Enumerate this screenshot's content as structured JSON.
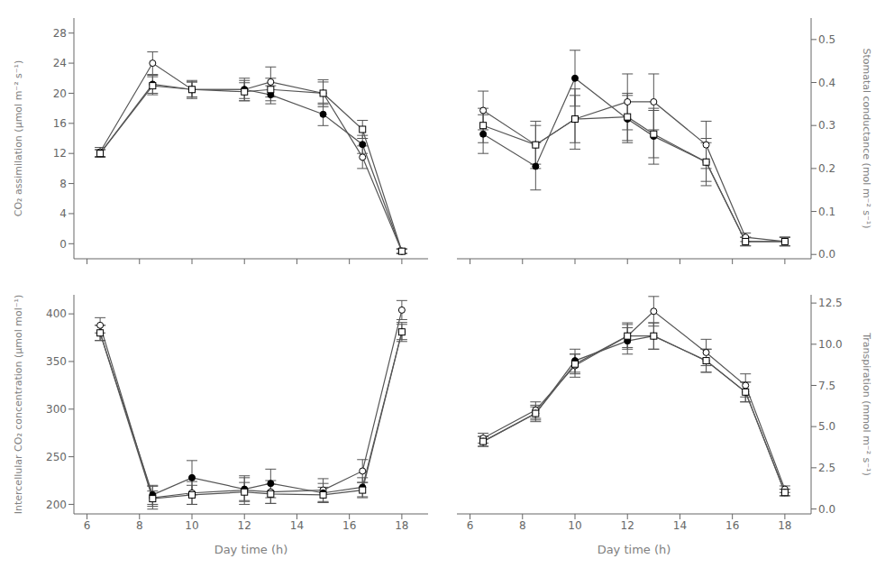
{
  "chart_data": [
    {
      "type": "line",
      "y_label": "CO₂ assimilation (μmol m⁻² s⁻¹)",
      "tick_labels": "y",
      "grid": false,
      "x": [
        6.5,
        8.5,
        10,
        12,
        13,
        15,
        16.5,
        18
      ],
      "xlim": [
        5.5,
        19.0
      ],
      "xticks": [
        6,
        8,
        10,
        12,
        14,
        16,
        18
      ],
      "ylim": [
        -2,
        30
      ],
      "yticks": [
        0,
        4,
        8,
        12,
        16,
        20,
        24,
        28
      ],
      "series": [
        {
          "marker": "circle_open",
          "color": "#555555",
          "values": [
            12.2,
            24.0,
            20.5,
            20.5,
            21.5,
            20.0,
            11.5,
            -1.0
          ],
          "errors": [
            0.6,
            1.5,
            1.2,
            1.5,
            2.0,
            1.8,
            1.5,
            0.3
          ]
        },
        {
          "marker": "circle",
          "color": "#555555",
          "values": [
            12.0,
            21.2,
            20.5,
            20.5,
            19.8,
            17.2,
            13.2,
            -1.0
          ],
          "errors": [
            0.5,
            1.2,
            1.0,
            1.2,
            1.2,
            1.5,
            1.2,
            0.3
          ]
        },
        {
          "marker": "square_open",
          "color": "#555555",
          "values": [
            12.0,
            21.0,
            20.5,
            20.2,
            20.5,
            20.0,
            15.2,
            -1.0
          ],
          "errors": [
            0.5,
            1.2,
            1.0,
            1.2,
            1.5,
            1.5,
            1.2,
            0.3
          ]
        }
      ]
    },
    {
      "type": "line",
      "y_label": "Stomatal conductance (mol m⁻² s⁻¹)",
      "tick_labels": "y",
      "grid": false,
      "x": [
        6.5,
        8.5,
        10,
        12,
        13,
        15,
        16.5,
        18
      ],
      "xlim": [
        5.5,
        19.0
      ],
      "xticks": [
        6,
        8,
        10,
        12,
        14,
        16,
        18
      ],
      "ylim": [
        -0.01,
        0.55
      ],
      "yticks": [
        {
          "value": 0.0,
          "label": "0.0"
        },
        0.1,
        0.2,
        0.3,
        0.4,
        0.5
      ],
      "series": [
        {
          "marker": "circle_open",
          "color": "#555555",
          "values": [
            0.335,
            0.255,
            0.315,
            0.355,
            0.355,
            0.255,
            0.04,
            0.03
          ],
          "errors": [
            0.045,
            0.055,
            0.07,
            0.065,
            0.065,
            0.055,
            0.01,
            0.01
          ]
        },
        {
          "marker": "circle",
          "color": "#555555",
          "values": [
            0.28,
            0.205,
            0.41,
            0.315,
            0.275,
            0.215,
            0.03,
            0.03
          ],
          "errors": [
            0.045,
            0.055,
            0.065,
            0.055,
            0.065,
            0.055,
            0.01,
            0.01
          ]
        },
        {
          "marker": "square_open",
          "color": "#555555",
          "values": [
            0.3,
            0.255,
            0.315,
            0.32,
            0.28,
            0.215,
            0.03,
            0.03
          ],
          "errors": [
            0.04,
            0.045,
            0.055,
            0.055,
            0.055,
            0.045,
            0.01,
            0.01
          ]
        }
      ]
    },
    {
      "type": "line",
      "y_label": "Intercellular CO₂ concentration (μmol mol⁻¹)",
      "x_label": "Day time (h)",
      "grid": false,
      "x": [
        6.5,
        8.5,
        10,
        12,
        13,
        15,
        16.5,
        18
      ],
      "xlim": [
        5.5,
        19.0
      ],
      "xticks": [
        6,
        8,
        10,
        12,
        14,
        16,
        18
      ],
      "ylim": [
        190,
        420
      ],
      "yticks": [
        200,
        250,
        300,
        350,
        400
      ],
      "series": [
        {
          "marker": "circle_open",
          "color": "#555555",
          "values": [
            388,
            207,
            212,
            215,
            213,
            215,
            235,
            404
          ],
          "errors": [
            8,
            12,
            12,
            15,
            12,
            12,
            12,
            10
          ]
        },
        {
          "marker": "circle",
          "color": "#555555",
          "values": [
            380,
            210,
            228,
            216,
            222,
            212,
            218,
            381
          ],
          "errors": [
            8,
            10,
            18,
            12,
            15,
            10,
            10,
            10
          ]
        },
        {
          "marker": "square_open",
          "color": "#555555",
          "values": [
            380,
            206,
            210,
            213,
            211,
            210,
            215,
            381
          ],
          "errors": [
            8,
            8,
            10,
            10,
            10,
            8,
            8,
            8
          ]
        }
      ]
    },
    {
      "type": "line",
      "y_label": "Transpiration (mmol m⁻² s⁻¹)",
      "x_label": "Day time (h)",
      "grid": false,
      "x": [
        6.5,
        8.5,
        10,
        12,
        13,
        15,
        16.5,
        18
      ],
      "xlim": [
        5.5,
        19.0
      ],
      "xticks": [
        6,
        8,
        10,
        12,
        14,
        16,
        18
      ],
      "ylim": [
        -0.3,
        13.0
      ],
      "yticks": [
        {
          "value": 0.0,
          "label": "0.0"
        },
        2.5,
        {
          "value": 5.0,
          "label": "5.0"
        },
        7.5,
        {
          "value": 10.0,
          "label": "10.0"
        },
        12.5
      ],
      "series": [
        {
          "marker": "circle_open",
          "color": "#555555",
          "values": [
            4.3,
            6.0,
            8.7,
            10.5,
            12.0,
            9.5,
            7.5,
            1.2
          ],
          "errors": [
            0.3,
            0.5,
            0.7,
            0.8,
            0.9,
            0.8,
            0.7,
            0.2
          ]
        },
        {
          "marker": "circle",
          "color": "#555555",
          "values": [
            4.1,
            5.8,
            9.0,
            10.2,
            10.5,
            9.0,
            7.1,
            1.0
          ],
          "errors": [
            0.3,
            0.5,
            0.7,
            0.8,
            0.8,
            0.7,
            0.6,
            0.2
          ]
        },
        {
          "marker": "square_open",
          "color": "#555555",
          "values": [
            4.1,
            5.8,
            8.8,
            10.5,
            10.5,
            9.0,
            7.1,
            1.0
          ],
          "errors": [
            0.3,
            0.4,
            0.6,
            0.7,
            0.8,
            0.7,
            0.6,
            0.2
          ]
        }
      ]
    }
  ]
}
